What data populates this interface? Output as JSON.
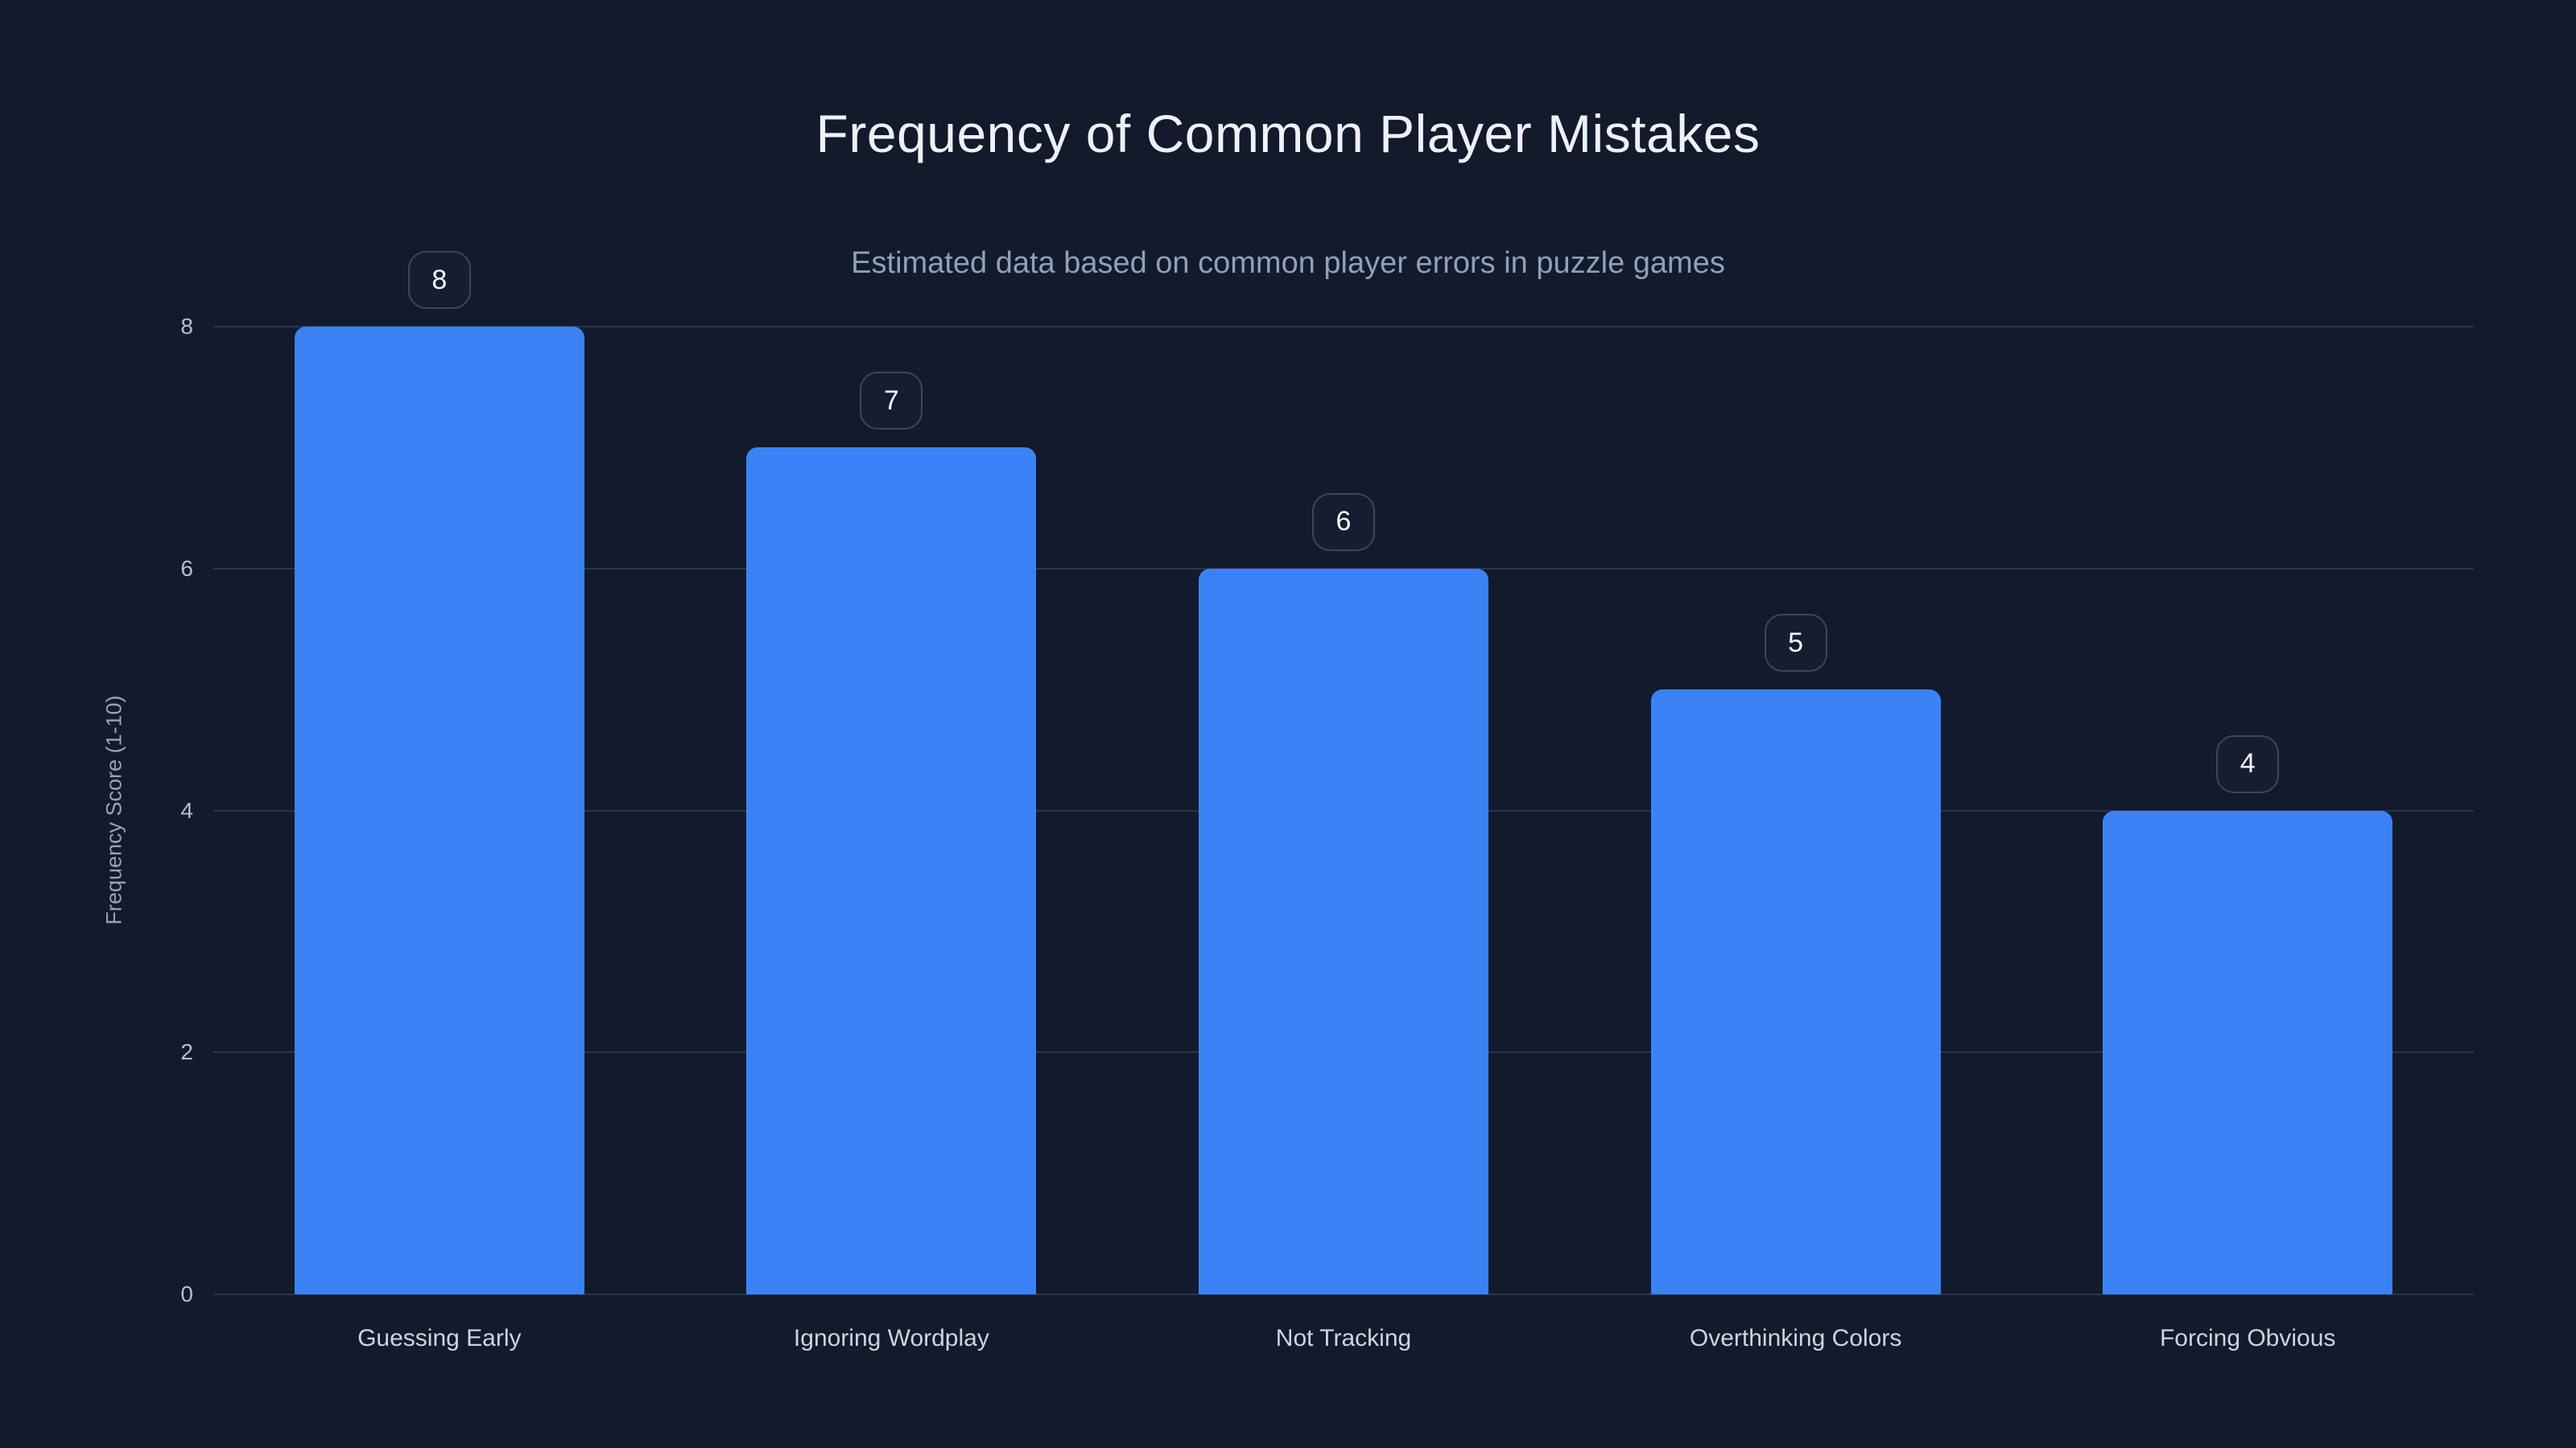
{
  "chart_data": {
    "type": "bar",
    "title": "Frequency of Common Player Mistakes",
    "subtitle": "Estimated data based on common player errors in puzzle games",
    "categories": [
      "Guessing Early",
      "Ignoring Wordplay",
      "Not Tracking",
      "Overthinking Colors",
      "Forcing Obvious"
    ],
    "values": [
      8,
      7,
      6,
      5,
      4
    ],
    "value_labels": [
      "8",
      "7",
      "6",
      "5",
      "4"
    ],
    "xlabel": "",
    "ylabel": "Frequency Score (1-10)",
    "ylim": [
      0,
      8
    ],
    "yticks": [
      0,
      2,
      4,
      6,
      8
    ],
    "grid": true,
    "legend": false
  },
  "colors": {
    "background": "#121a2b",
    "bar_fill": "#3b82f6",
    "gridline": "#2a3550",
    "title_text": "#eef2f8",
    "subtitle_text": "#8fa0b8",
    "tick_text": "#b3bfd1",
    "category_text": "#cbd5e1",
    "axis_label_text": "#94a3b8",
    "badge_border": "#3b4659",
    "badge_background": "#151e31",
    "badge_text": "#f8fafc"
  }
}
